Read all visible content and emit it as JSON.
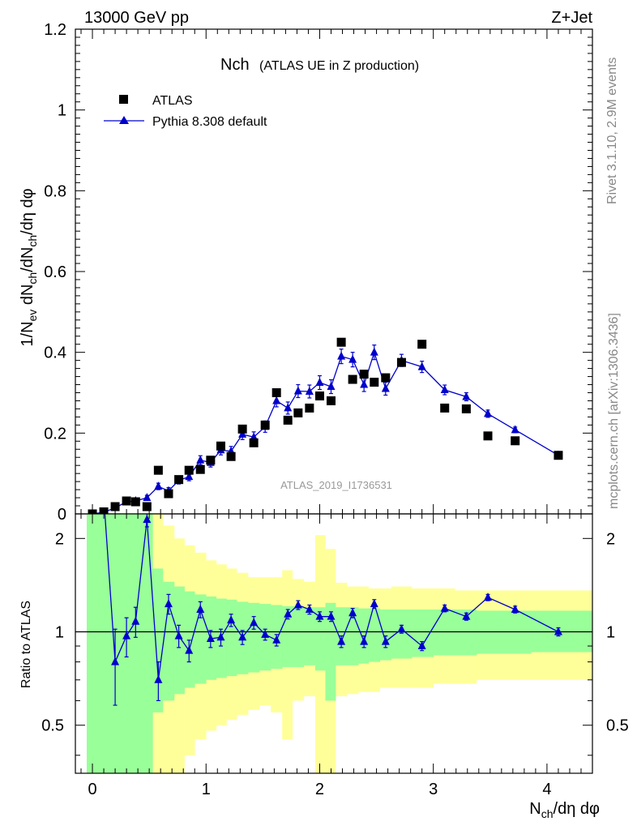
{
  "header": {
    "energy": "13000 GeV pp",
    "process": "Z+Jet"
  },
  "side_labels": {
    "rivet": "Rivet 3.1.10,  2.9M events",
    "site": "mcplots.cern.ch [arXiv:1306.3436]"
  },
  "watermark": "ATLAS_2019_I1736531",
  "colors": {
    "mc": "#0000cc",
    "data": "#000000",
    "band_stat": "#99ff99",
    "band_total": "#ffff99"
  },
  "chart_data": [
    {
      "type": "scatter",
      "title_main": "Nch",
      "title_sub": "(ATLAS UE in Z production)",
      "ylabel": "1/N_ev dN_ch/dN_ch/dη dφ",
      "ylim": [
        0,
        1.2
      ],
      "yticks": [
        "0",
        "0.2",
        "0.4",
        "0.6",
        "0.8",
        "1",
        "1.2"
      ],
      "legend": [
        {
          "name": "ATLAS",
          "marker": "square"
        },
        {
          "name": "Pythia 8.308 default",
          "marker": "triangle"
        }
      ],
      "series": [
        {
          "name": "ATLAS",
          "x": [
            0.0,
            0.1,
            0.2,
            0.3,
            0.38,
            0.48,
            0.58,
            0.67,
            0.76,
            0.85,
            0.95,
            1.04,
            1.13,
            1.22,
            1.32,
            1.42,
            1.52,
            1.62,
            1.72,
            1.81,
            1.91,
            2.0,
            2.1,
            2.19,
            2.29,
            2.39,
            2.48,
            2.58,
            2.72,
            2.9,
            3.1,
            3.29,
            3.48,
            3.72,
            4.1
          ],
          "y": [
            0.0,
            0.005,
            0.018,
            0.032,
            0.03,
            0.018,
            0.108,
            0.05,
            0.085,
            0.108,
            0.11,
            0.133,
            0.168,
            0.142,
            0.21,
            0.176,
            0.22,
            0.3,
            0.232,
            0.25,
            0.262,
            0.292,
            0.28,
            0.425,
            0.333,
            0.346,
            0.326,
            0.337,
            0.375,
            0.42,
            0.262,
            0.26,
            0.193,
            0.181,
            0.145
          ]
        },
        {
          "name": "Pythia 8.308 default",
          "x": [
            0.0,
            0.1,
            0.2,
            0.3,
            0.38,
            0.48,
            0.58,
            0.67,
            0.76,
            0.85,
            0.95,
            1.04,
            1.13,
            1.22,
            1.32,
            1.42,
            1.52,
            1.62,
            1.72,
            1.81,
            1.91,
            2.0,
            2.1,
            2.19,
            2.29,
            2.39,
            2.48,
            2.58,
            2.72,
            2.9,
            3.1,
            3.29,
            3.48,
            3.72,
            4.1
          ],
          "y": [
            0.0,
            0.004,
            0.015,
            0.03,
            0.032,
            0.04,
            0.068,
            0.057,
            0.083,
            0.092,
            0.133,
            0.127,
            0.158,
            0.155,
            0.197,
            0.19,
            0.216,
            0.28,
            0.262,
            0.304,
            0.303,
            0.325,
            0.315,
            0.39,
            0.382,
            0.32,
            0.4,
            0.31,
            0.38,
            0.364,
            0.307,
            0.29,
            0.248,
            0.208,
            0.145
          ],
          "err": [
            0.002,
            0.002,
            0.004,
            0.005,
            0.006,
            0.006,
            0.008,
            0.008,
            0.009,
            0.01,
            0.011,
            0.011,
            0.012,
            0.012,
            0.013,
            0.013,
            0.014,
            0.015,
            0.015,
            0.016,
            0.016,
            0.017,
            0.017,
            0.018,
            0.018,
            0.017,
            0.018,
            0.016,
            0.015,
            0.014,
            0.012,
            0.01,
            0.009,
            0.007,
            0.005
          ]
        }
      ]
    },
    {
      "type": "scatter",
      "ylabel": "Ratio to ATLAS",
      "xlabel": "N_ch/dη dφ",
      "xlim": [
        -0.15,
        4.4
      ],
      "ylim": [
        0.35,
        2.4
      ],
      "log_y": true,
      "yticks": [
        "0.5",
        "1",
        "2"
      ],
      "xticks": [
        "0",
        "1",
        "2",
        "3",
        "4"
      ],
      "ratio": {
        "x": [
          0.2,
          0.3,
          0.38,
          0.48,
          0.58,
          0.67,
          0.76,
          0.85,
          0.95,
          1.04,
          1.13,
          1.22,
          1.32,
          1.42,
          1.52,
          1.62,
          1.72,
          1.81,
          1.91,
          2.0,
          2.1,
          2.19,
          2.29,
          2.39,
          2.48,
          2.58,
          2.72,
          2.9,
          3.1,
          3.29,
          3.48,
          3.72,
          4.1
        ],
        "y": [
          0.8,
          0.97,
          1.08,
          2.3,
          0.7,
          1.23,
          0.97,
          0.87,
          1.18,
          0.95,
          0.96,
          1.09,
          0.96,
          1.07,
          0.98,
          0.94,
          1.14,
          1.22,
          1.18,
          1.12,
          1.12,
          0.93,
          1.15,
          0.93,
          1.23,
          0.93,
          1.02,
          0.9,
          1.19,
          1.12,
          1.29,
          1.18,
          1.0
        ],
        "err": [
          0.22,
          0.14,
          0.12,
          0.12,
          0.1,
          0.09,
          0.08,
          0.07,
          0.07,
          0.06,
          0.06,
          0.05,
          0.05,
          0.05,
          0.04,
          0.04,
          0.04,
          0.04,
          0.04,
          0.04,
          0.04,
          0.04,
          0.04,
          0.04,
          0.04,
          0.04,
          0.03,
          0.03,
          0.03,
          0.03,
          0.03,
          0.03,
          0.03
        ]
      },
      "bands": {
        "edges": [
          -0.05,
          0.05,
          0.15,
          0.25,
          0.35,
          0.43,
          0.53,
          0.62,
          0.72,
          0.81,
          0.9,
          1.0,
          1.09,
          1.18,
          1.27,
          1.37,
          1.47,
          1.57,
          1.67,
          1.76,
          1.86,
          1.96,
          2.05,
          2.14,
          2.24,
          2.34,
          2.43,
          2.53,
          2.63,
          2.81,
          3.0,
          3.19,
          3.38,
          3.58,
          3.86,
          4.4
        ],
        "stat_lo": [
          0.3,
          0.3,
          0.3,
          0.3,
          0.3,
          0.3,
          0.55,
          0.6,
          0.63,
          0.66,
          0.68,
          0.7,
          0.71,
          0.72,
          0.73,
          0.74,
          0.75,
          0.76,
          0.77,
          0.77,
          0.78,
          0.75,
          0.6,
          0.78,
          0.78,
          0.79,
          0.8,
          0.81,
          0.82,
          0.83,
          0.84,
          0.84,
          0.85,
          0.85,
          0.86
        ],
        "stat_hi": [
          2.8,
          2.8,
          2.8,
          2.8,
          2.8,
          2.8,
          1.6,
          1.45,
          1.4,
          1.35,
          1.32,
          1.3,
          1.28,
          1.27,
          1.25,
          1.24,
          1.23,
          1.22,
          1.21,
          1.21,
          1.2,
          1.2,
          1.24,
          1.2,
          1.2,
          1.19,
          1.19,
          1.18,
          1.18,
          1.18,
          1.18,
          1.18,
          1.17,
          1.17,
          1.17
        ],
        "tot_lo": [
          0.3,
          0.3,
          0.3,
          0.3,
          0.3,
          0.3,
          0.3,
          0.3,
          0.35,
          0.4,
          0.45,
          0.48,
          0.5,
          0.52,
          0.54,
          0.56,
          0.58,
          0.55,
          0.45,
          0.6,
          0.62,
          0.3,
          0.3,
          0.62,
          0.63,
          0.64,
          0.64,
          0.66,
          0.66,
          0.66,
          0.68,
          0.68,
          0.7,
          0.7,
          0.7
        ],
        "tot_hi": [
          2.8,
          2.8,
          2.8,
          2.8,
          2.8,
          2.8,
          2.4,
          2.2,
          2.0,
          1.9,
          1.8,
          1.7,
          1.65,
          1.6,
          1.55,
          1.5,
          1.5,
          1.5,
          1.58,
          1.48,
          1.45,
          2.05,
          1.85,
          1.44,
          1.4,
          1.4,
          1.38,
          1.38,
          1.4,
          1.38,
          1.38,
          1.36,
          1.36,
          1.36,
          1.36
        ]
      }
    }
  ]
}
